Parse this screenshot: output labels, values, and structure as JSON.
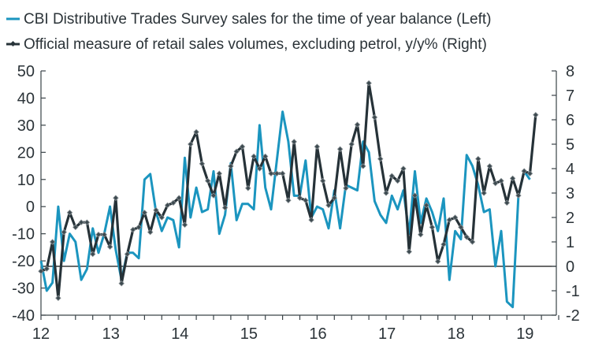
{
  "chart_data": {
    "type": "line",
    "title": "",
    "xlabel": "",
    "ylabel_left": "",
    "ylabel_right": "",
    "legend_position": "top-left",
    "grid": false,
    "x_start": "2012-01",
    "x_frequency": "monthly",
    "x_ticks": [
      "12",
      "13",
      "14",
      "15",
      "16",
      "17",
      "18",
      "19"
    ],
    "xlim_years": [
      2012,
      2019.5
    ],
    "ylim_left": [
      -40,
      50
    ],
    "yticks_left": [
      "50",
      "40",
      "30",
      "20",
      "10",
      "0",
      "-10",
      "-20",
      "-30",
      "-40"
    ],
    "ylim_right": [
      -2,
      8
    ],
    "yticks_right": [
      "8",
      "7",
      "6",
      "5",
      "4",
      "3",
      "2",
      "1",
      "0",
      "-1",
      "-2"
    ],
    "reference_line_right": 0,
    "series": [
      {
        "name": "CBI Distributive Trades Survey sales for the time of year balance (Left)",
        "axis": "left",
        "color": "#1b95bf",
        "marker": "none",
        "values": [
          -20,
          -31,
          -28,
          0,
          -20,
          -10,
          -13,
          -27,
          -23,
          -8,
          -17,
          -10,
          0,
          -16,
          -27,
          -17,
          -17,
          -19,
          10,
          12,
          -2,
          -9,
          -4,
          -5,
          -15,
          18,
          -4,
          7,
          -2,
          -1,
          13,
          -10,
          -3,
          16,
          -5,
          1,
          1,
          -1,
          30,
          7,
          -1,
          17,
          35,
          24,
          4,
          4,
          17,
          -4,
          0,
          -1,
          -8,
          6,
          -8,
          8,
          7,
          6,
          24,
          20,
          2,
          -3,
          -6,
          4,
          -1,
          6,
          -10,
          13,
          -6,
          3,
          -2,
          -9,
          3,
          -27,
          -9,
          -12,
          19,
          15,
          8,
          -2,
          -1,
          -22,
          -9,
          -35,
          -37,
          4,
          13,
          10
        ]
      },
      {
        "name": "Official measure of retail sales volumes, excluding petrol, y/y% (Right)",
        "axis": "right",
        "color": "#263238",
        "marker": "diamond",
        "values": [
          -0.2,
          -0.1,
          1.0,
          -1.3,
          1.4,
          2.2,
          1.6,
          1.8,
          1.8,
          0.5,
          1.3,
          1.3,
          0.8,
          2.8,
          -0.7,
          0.5,
          1.5,
          1.6,
          2.2,
          1.4,
          2.3,
          2.0,
          2.5,
          2.6,
          2.8,
          1.7,
          5.0,
          5.5,
          4.2,
          3.5,
          2.9,
          3.8,
          2.4,
          4.1,
          4.7,
          4.9,
          3.2,
          4.5,
          4.0,
          4.5,
          3.8,
          3.8,
          3.8,
          2.7,
          5.1,
          2.8,
          2.7,
          1.9,
          4.9,
          3.5,
          2.5,
          2.8,
          4.8,
          3.2,
          5.0,
          5.8,
          4.1,
          7.5,
          6.1,
          4.4,
          3.0,
          3.7,
          3.5,
          4.0,
          0.6,
          2.9,
          1.3,
          2.5,
          1.6,
          0.2,
          0.9,
          1.9,
          2.0,
          1.6,
          1.2,
          1.0,
          4.4,
          3.0,
          4.1,
          3.4,
          3.5,
          2.6,
          3.6,
          2.9,
          3.9,
          3.8,
          6.2
        ]
      }
    ]
  }
}
